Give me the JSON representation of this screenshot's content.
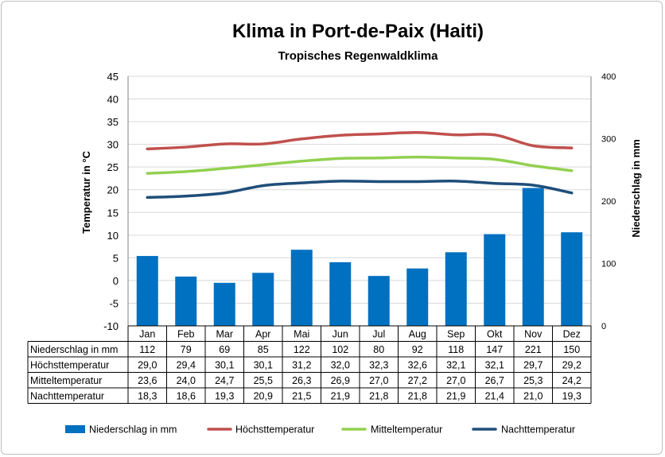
{
  "chart_data": {
    "type": "bar",
    "title": "Klima in Port-de-Paix (Haiti)",
    "subtitle": "Tropisches Regenwaldklima",
    "ylabel": "Temperatur in °C",
    "y2label": "Niederschlag in mm",
    "ylim": [
      -10,
      45
    ],
    "y2lim": [
      0,
      400
    ],
    "yticks": [
      "45",
      "40",
      "35",
      "30",
      "25",
      "20",
      "15",
      "10",
      "5",
      "0",
      "-5",
      "-10"
    ],
    "y2ticks": [
      "400",
      "300",
      "200",
      "100",
      "0"
    ],
    "categories": [
      "Jan",
      "Feb",
      "Mar",
      "Apr",
      "Mai",
      "Jun",
      "Jul",
      "Aug",
      "Sep",
      "Okt",
      "Nov",
      "Dez"
    ],
    "series": [
      {
        "name": "Niederschlag in mm",
        "type": "bar",
        "axis": "right",
        "color": "#0070c0",
        "values": [
          112,
          79,
          69,
          85,
          122,
          102,
          80,
          92,
          118,
          147,
          221,
          150
        ],
        "labels": [
          "112",
          "79",
          "69",
          "85",
          "122",
          "102",
          "80",
          "92",
          "118",
          "147",
          "221",
          "150"
        ]
      },
      {
        "name": "Höchsttemperatur",
        "type": "line",
        "axis": "left",
        "color": "#c0504d",
        "values": [
          29.0,
          29.4,
          30.1,
          30.1,
          31.2,
          32.0,
          32.3,
          32.6,
          32.1,
          32.1,
          29.7,
          29.2
        ],
        "labels": [
          "29,0",
          "29,4",
          "30,1",
          "30,1",
          "31,2",
          "32,0",
          "32,3",
          "32,6",
          "32,1",
          "32,1",
          "29,7",
          "29,2"
        ]
      },
      {
        "name": "Mitteltemperatur",
        "type": "line",
        "axis": "left",
        "color": "#92d050",
        "values": [
          23.6,
          24.0,
          24.7,
          25.5,
          26.3,
          26.9,
          27.0,
          27.2,
          27.0,
          26.7,
          25.3,
          24.2
        ],
        "labels": [
          "23,6",
          "24,0",
          "24,7",
          "25,5",
          "26,3",
          "26,9",
          "27,0",
          "27,2",
          "27,0",
          "26,7",
          "25,3",
          "24,2"
        ]
      },
      {
        "name": "Nachttemperatur",
        "type": "line",
        "axis": "left",
        "color": "#1f4e79",
        "values": [
          18.3,
          18.6,
          19.3,
          20.9,
          21.5,
          21.9,
          21.8,
          21.8,
          21.9,
          21.4,
          21.0,
          19.3
        ],
        "labels": [
          "18,3",
          "18,6",
          "19,3",
          "20,9",
          "21,5",
          "21,9",
          "21,8",
          "21,8",
          "21,9",
          "21,4",
          "21,0",
          "19,3"
        ]
      }
    ],
    "grid": true,
    "legend": "bottom"
  }
}
